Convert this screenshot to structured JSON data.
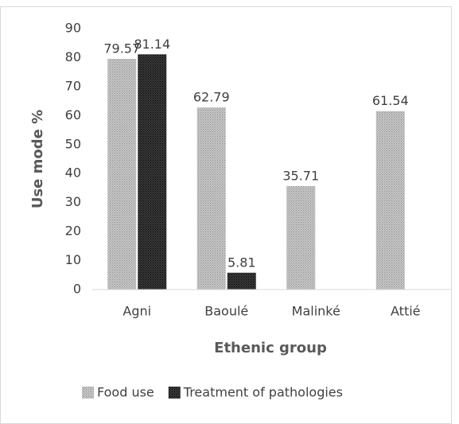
{
  "chart_data": {
    "type": "bar",
    "categories": [
      "Agni",
      "Baoulé",
      "Malinké",
      "Attié"
    ],
    "series": [
      {
        "name": "Food use",
        "color": "#c8c8c8",
        "values": [
          79.57,
          62.79,
          35.71,
          61.54
        ]
      },
      {
        "name": "Treatment of pathologies",
        "color": "#3a3a3a",
        "values": [
          81.14,
          5.81,
          null,
          null
        ]
      }
    ],
    "xlabel": "Ethenic group",
    "ylabel": "Use mode %",
    "ylim": [
      0,
      90
    ],
    "yticks": [
      0,
      10,
      20,
      30,
      40,
      50,
      60,
      70,
      80,
      90
    ],
    "grid": false,
    "legend": "bottom"
  }
}
